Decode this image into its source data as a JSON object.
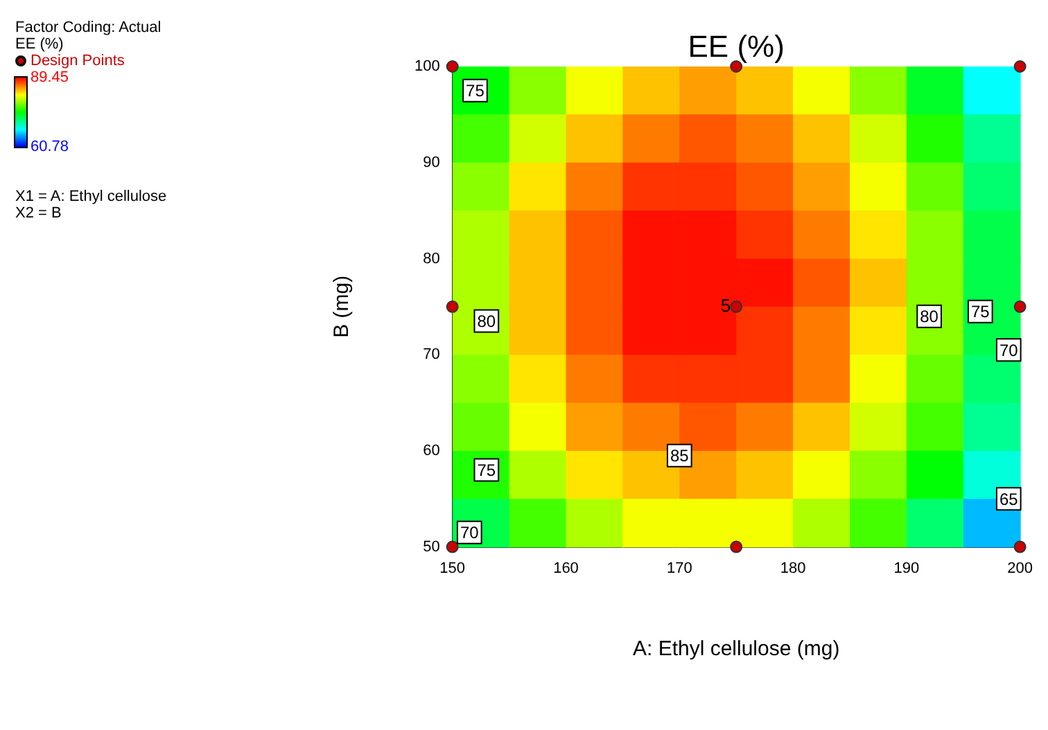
{
  "chart_data": {
    "type": "heatmap",
    "title": "EE (%)",
    "xlabel": "A: Ethyl cellulose (mg)",
    "ylabel": "B (mg)",
    "clabel": "EE (%)",
    "xlim": [
      150,
      200
    ],
    "xticks": [
      150,
      160,
      170,
      180,
      190,
      200
    ],
    "ylim": [
      50,
      100
    ],
    "yticks": [
      50,
      60,
      70,
      80,
      90,
      100
    ],
    "clim": [
      60.78,
      89.45
    ],
    "cticks": [
      60.78,
      89.45
    ],
    "legend": "top left",
    "cells": [
      [
        75,
        79,
        82,
        84,
        85,
        84,
        82,
        79,
        74,
        68
      ],
      [
        77,
        81,
        84,
        86,
        87,
        86,
        84,
        81,
        76,
        71
      ],
      [
        79,
        83,
        86,
        88,
        88,
        87,
        85,
        82,
        78,
        72
      ],
      [
        80,
        84,
        87,
        89,
        89,
        88,
        86,
        83,
        79,
        73
      ],
      [
        80,
        84,
        87,
        89,
        89,
        89,
        87,
        84,
        79,
        73
      ],
      [
        80,
        84,
        87,
        89,
        89,
        88,
        86,
        83,
        79,
        73
      ],
      [
        79,
        83,
        86,
        88,
        88,
        88,
        86,
        82,
        78,
        72
      ],
      [
        78,
        82,
        85,
        86,
        87,
        86,
        84,
        81,
        77,
        71
      ],
      [
        76,
        80,
        83,
        84,
        85,
        84,
        82,
        79,
        75,
        69
      ],
      [
        73,
        77,
        80,
        82,
        82,
        82,
        80,
        77,
        72,
        66
      ]
    ],
    "series": [
      {
        "type": "scatter",
        "name": "Design Points",
        "color": "#cc0000",
        "x": [
          150,
          175,
          200,
          150,
          175,
          200,
          150,
          175,
          200
        ],
        "values": [
          50,
          50,
          50,
          75,
          75,
          75,
          100,
          100,
          100
        ]
      }
    ],
    "annotations": [
      "Factor Coding: Actual",
      "X1 = A: Ethyl cellulose",
      "X2 = B",
      {
        "text": "5",
        "x": 175,
        "y": 75
      },
      {
        "text": "75",
        "x": 152,
        "y": 97.5
      },
      {
        "text": "80",
        "x": 153,
        "y": 73.5
      },
      {
        "text": "75",
        "x": 153,
        "y": 58
      },
      {
        "text": "70",
        "x": 151.5,
        "y": 51.5
      },
      {
        "text": "85",
        "x": 170,
        "y": 59.5
      },
      {
        "text": "80",
        "x": 192,
        "y": 74
      },
      {
        "text": "75",
        "x": 196.5,
        "y": 74.5
      },
      {
        "text": "70",
        "x": 199,
        "y": 70.5
      },
      {
        "text": "65",
        "x": 199,
        "y": 55
      }
    ]
  }
}
